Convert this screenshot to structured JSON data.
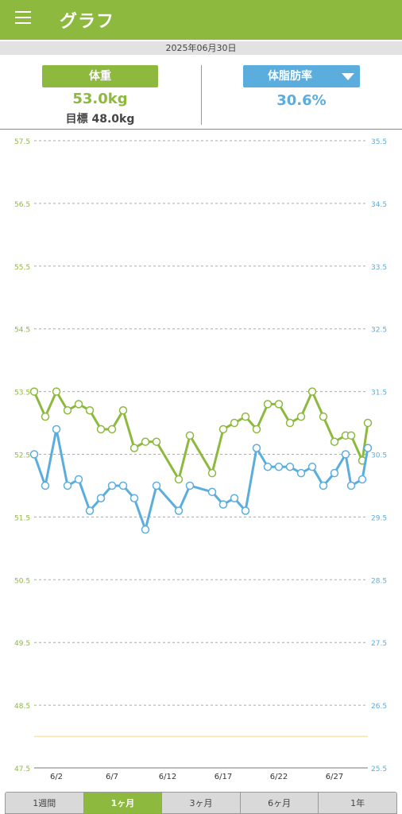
{
  "header": {
    "title": "グラフ",
    "menu_icon": "hamburger-menu-icon"
  },
  "date": "2025年06月30日",
  "weight": {
    "label": "体重",
    "value": "53.0kg",
    "target": "目標 48.0kg"
  },
  "fat": {
    "label": "体脂肪率",
    "value": "30.6%",
    "dropdown_icon": "triangle-down-icon"
  },
  "tabs": [
    {
      "label": "1週間",
      "active": false
    },
    {
      "label": "1ヶ月",
      "active": true
    },
    {
      "label": "3ヶ月",
      "active": false
    },
    {
      "label": "6ヶ月",
      "active": false
    },
    {
      "label": "1年",
      "active": false
    }
  ],
  "colors": {
    "weight": "#8cb93e",
    "fat": "#5aaddd",
    "target_line": "#f0e6b4"
  },
  "chart_data": {
    "type": "line",
    "x": [
      "5/31",
      "6/1",
      "6/2",
      "6/3",
      "6/4",
      "6/5",
      "6/6",
      "6/7",
      "6/8",
      "6/9",
      "6/10",
      "6/11",
      "6/12",
      "6/13",
      "6/14",
      "6/15",
      "6/16",
      "6/17",
      "6/18",
      "6/19",
      "6/20",
      "6/21",
      "6/22",
      "6/23",
      "6/24",
      "6/25",
      "6/26",
      "6/27",
      "6/28",
      "6/29",
      "6/30"
    ],
    "x_tick_labels": [
      "6/2",
      "6/7",
      "6/12",
      "6/17",
      "6/22",
      "6/27"
    ],
    "series": [
      {
        "axis": "left",
        "color": "#8cb93e",
        "points": [
          [
            "5/31",
            53.5
          ],
          [
            "6/1",
            53.1
          ],
          [
            "6/2",
            53.5
          ],
          [
            "6/3",
            53.2
          ],
          [
            "6/4",
            53.3
          ],
          [
            "6/5",
            53.2
          ],
          [
            "6/6",
            52.9
          ],
          [
            "6/7",
            52.9
          ],
          [
            "6/8",
            53.2
          ],
          [
            "6/9",
            52.6
          ],
          [
            "6/10",
            52.7
          ],
          [
            "6/11",
            52.7
          ],
          [
            "6/13",
            52.1
          ],
          [
            "6/14",
            52.8
          ],
          [
            "6/16",
            52.2
          ],
          [
            "6/17",
            52.9
          ],
          [
            "6/18",
            53.0
          ],
          [
            "6/19",
            53.1
          ],
          [
            "6/20",
            52.9
          ],
          [
            "6/21",
            53.3
          ],
          [
            "6/22",
            53.3
          ],
          [
            "6/23",
            53.0
          ],
          [
            "6/24",
            53.1
          ],
          [
            "6/25",
            53.5
          ],
          [
            "6/26",
            53.1
          ],
          [
            "6/27",
            52.7
          ],
          [
            "6/28",
            52.8
          ],
          [
            "6/29",
            52.8
          ],
          [
            "6/30",
            52.4
          ],
          [
            "6/30b",
            53.0
          ]
        ]
      },
      {
        "axis": "right",
        "color": "#5aaddd",
        "points": [
          [
            "5/31",
            30.5
          ],
          [
            "6/1",
            30.0
          ],
          [
            "6/2",
            30.9
          ],
          [
            "6/3",
            30.0
          ],
          [
            "6/4",
            30.1
          ],
          [
            "6/5",
            29.6
          ],
          [
            "6/6",
            29.8
          ],
          [
            "6/7",
            30.0
          ],
          [
            "6/8",
            30.0
          ],
          [
            "6/9",
            29.8
          ],
          [
            "6/10",
            29.3
          ],
          [
            "6/11",
            30.0
          ],
          [
            "6/13",
            29.6
          ],
          [
            "6/14",
            30.0
          ],
          [
            "6/16",
            29.9
          ],
          [
            "6/17",
            29.7
          ],
          [
            "6/18",
            29.8
          ],
          [
            "6/19",
            29.6
          ],
          [
            "6/20",
            30.6
          ],
          [
            "6/21",
            30.3
          ],
          [
            "6/22",
            30.3
          ],
          [
            "6/23",
            30.3
          ],
          [
            "6/24",
            30.2
          ],
          [
            "6/25",
            30.3
          ],
          [
            "6/26",
            30.0
          ],
          [
            "6/27",
            30.2
          ],
          [
            "6/28",
            30.5
          ],
          [
            "6/29",
            30.0
          ],
          [
            "6/30",
            30.1
          ],
          [
            "6/30b",
            30.6
          ]
        ]
      }
    ],
    "target_weight": 48.0,
    "ylim_left": [
      47.5,
      57.5
    ],
    "ylim_right": [
      25.5,
      35.5
    ],
    "yticks_left": [
      47.5,
      48.5,
      49.5,
      50.5,
      51.5,
      52.5,
      53.5,
      54.5,
      55.5,
      56.5,
      57.5
    ],
    "yticks_right": [
      25.5,
      26.5,
      27.5,
      28.5,
      29.5,
      30.5,
      31.5,
      32.5,
      33.5,
      34.5,
      35.5
    ],
    "grid": true
  }
}
